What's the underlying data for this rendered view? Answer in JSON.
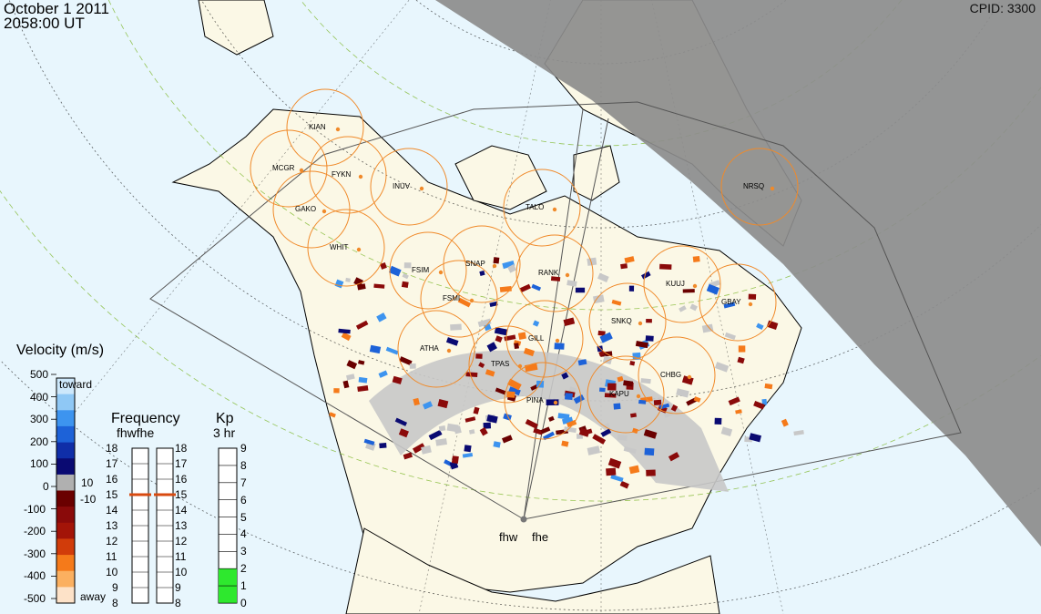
{
  "header": {
    "date": "October  1 2011",
    "time": "2058:00 UT",
    "cpid": "CPID:  3300"
  },
  "velocity_scale": {
    "title": "Velocity (m/s)",
    "ticks": [
      "500",
      "400",
      "300",
      "200",
      "100",
      "0",
      "-100",
      "-200",
      "-300",
      "-400",
      "-500"
    ],
    "toward_label": "toward",
    "away_label": "away",
    "small_pos": "10",
    "small_neg": "-10",
    "colors": [
      "#fde2c8",
      "#fbb060",
      "#f57a1a",
      "#d13c0a",
      "#a31408",
      "#8a0a0a",
      "#6a0000",
      "#b0b0b0",
      "#0a0a72",
      "#0f2ea8",
      "#1d62d8",
      "#3d94ef",
      "#8fc8f5",
      "#cde8fb"
    ]
  },
  "frequency_panel": {
    "title": "Frequency",
    "subtitle": "fhwfhe",
    "ticks": [
      "18",
      "17",
      "16",
      "15",
      "14",
      "13",
      "12",
      "11",
      "10",
      "9",
      "8"
    ],
    "fhw_value": 15.0,
    "fhe_value": 15.0,
    "marker_color": "#d84a10"
  },
  "kp_panel": {
    "title": "Kp",
    "subtitle": "3 hr",
    "ticks": [
      "9",
      "8",
      "7",
      "6",
      "5",
      "4",
      "3",
      "2",
      "1",
      "0"
    ],
    "value": 2.0,
    "fill_color": "#2ee82e"
  },
  "radars": {
    "west": "fhw",
    "east": "fhe"
  },
  "stations": [
    "KIAN",
    "MCGR",
    "FYKN",
    "GAKO",
    "INUV",
    "WHIT",
    "FSIM",
    "SNAP",
    "FSMI",
    "TALO",
    "RANK",
    "KUUJ",
    "GBAY",
    "ATHA",
    "GILL",
    "TPAS",
    "PINA",
    "CHBG",
    "KAPU",
    "NRSQ",
    "SNKQ"
  ],
  "colors": {
    "ocean": "#e8f6fd",
    "land": "#fbf8e6",
    "night": "#8c8c8c",
    "station_circle": "#f08a2a",
    "grid": "#7fb82e",
    "ground_scatter": "#c8c8c8"
  }
}
